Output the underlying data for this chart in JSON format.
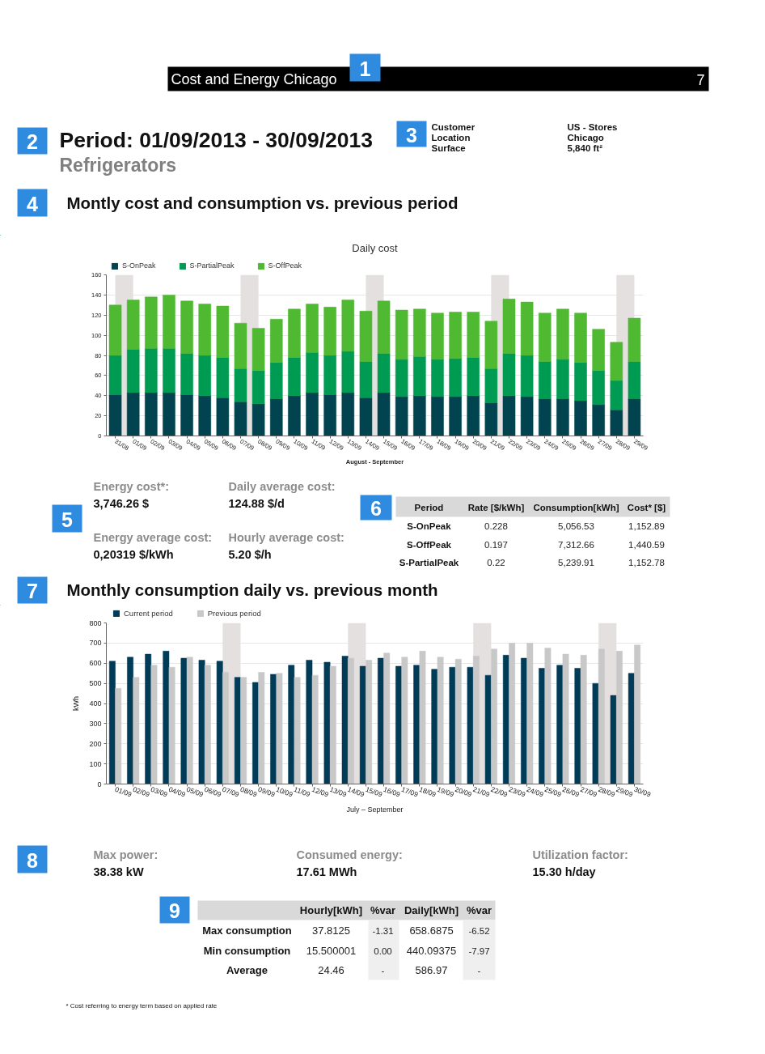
{
  "chart_data": [
    {
      "type": "other",
      "title": "Cost and Energy Chicago",
      "annotations": [
        "7",
        "1",
        "2",
        "Period: 01/09/2013 - 30/09/2013",
        "Refrigerators",
        "3",
        "Customer",
        "Location",
        "Surface",
        "US - Stores",
        "Chicago",
        "5,840 ft²",
        "4",
        "Montly cost and consumption vs. previous period"
      ]
    },
    {
      "type": "bar",
      "title": "Daily cost",
      "xlabel": "August - September",
      "categories": [
        "31/08",
        "01/09",
        "02/09",
        "03/09",
        "04/09",
        "05/09",
        "06/09",
        "07/09",
        "08/09",
        "09/09",
        "10/09",
        "11/09",
        "12/09",
        "13/09",
        "14/09",
        "15/09",
        "16/09",
        "17/09",
        "18/09",
        "19/09",
        "20/09",
        "21/09",
        "22/09",
        "23/09",
        "24/09",
        "25/09",
        "26/09",
        "27/09",
        "28/09",
        "29/09"
      ],
      "stacked": true,
      "series": [
        {
          "name": "S-OnPeak",
          "color": "#01434f",
          "values": [
            41,
            43,
            43,
            43,
            41,
            40,
            38,
            34,
            32,
            37,
            40,
            43,
            41,
            43,
            38,
            43,
            39,
            40,
            39,
            39,
            40,
            33,
            40,
            39,
            37,
            37,
            35,
            31,
            26,
            37
          ]
        },
        {
          "name": "S-PartialPeak",
          "color": "#009b52",
          "values": [
            39,
            43,
            44,
            44,
            41,
            40,
            40,
            33,
            33,
            36,
            38,
            40,
            39,
            41,
            36,
            39,
            37,
            39,
            37,
            38,
            38,
            34,
            42,
            41,
            37,
            39,
            38,
            34,
            29,
            37
          ]
        },
        {
          "name": "S-OffPeak",
          "color": "#50b932",
          "values": [
            50,
            49,
            51,
            53,
            52,
            51,
            51,
            45,
            42,
            43,
            48,
            48,
            48,
            51,
            50,
            52,
            49,
            47,
            46,
            46,
            45,
            47,
            54,
            53,
            48,
            50,
            49,
            41,
            38,
            43
          ]
        }
      ],
      "ylim": [
        0,
        160
      ],
      "yticks": [
        0,
        20,
        40,
        60,
        80,
        100,
        120,
        140,
        160
      ],
      "grid": "y",
      "legend": "top left",
      "bands": [
        {
          "axis": "x",
          "from": "31/08",
          "to": "01/09",
          "color": "#e4e0e0"
        },
        {
          "axis": "x",
          "from": "07/09",
          "to": "08/09",
          "color": "#e4e0e0"
        },
        {
          "axis": "x",
          "from": "14/09",
          "to": "15/09",
          "color": "#e4e0e0"
        },
        {
          "axis": "x",
          "from": "21/09",
          "to": "22/09",
          "color": "#e4e0e0"
        },
        {
          "axis": "x",
          "from": "28/09",
          "to": "29/09",
          "color": "#e4e0e0"
        }
      ]
    },
    {
      "type": "other",
      "annotations": [
        "5",
        "Energy cost*:",
        "3,746.26 $",
        "Daily average cost:",
        "124.88 $/d",
        "Energy average cost:",
        "0,20319 $/kWh",
        "Hourly average cost:",
        "5.20 $/h",
        "6",
        "Period",
        "Rate [$/kWh]",
        "Consumption[kWh]",
        "Cost* [$]",
        "S-OnPeak",
        "0.228",
        "5,056.53",
        "1,152.89",
        "S-OffPeak",
        "0.197",
        "7,312.66",
        "1,440.59",
        "S-PartialPeak",
        "0.22",
        "5,239.91",
        "1,152.78",
        "7",
        "Monthly consumption daily vs. previous month"
      ]
    },
    {
      "type": "bar",
      "xlabel": "July – September",
      "ylabel": "kWh",
      "categories": [
        "01/09",
        "02/09",
        "03/09",
        "04/09",
        "05/09",
        "06/09",
        "07/09",
        "08/09",
        "09/09",
        "10/09",
        "11/09",
        "12/09",
        "13/09",
        "14/09",
        "15/09",
        "16/09",
        "17/09",
        "18/09",
        "19/09",
        "20/09",
        "21/09",
        "22/09",
        "23/09",
        "24/09",
        "25/09",
        "26/09",
        "27/09",
        "28/09",
        "29/09",
        "30/09"
      ],
      "series": [
        {
          "name": "Current period",
          "color": "#003b57",
          "values": [
            610,
            630,
            645,
            660,
            625,
            615,
            610,
            530,
            505,
            545,
            590,
            615,
            605,
            635,
            585,
            625,
            585,
            590,
            570,
            580,
            580,
            540,
            640,
            625,
            575,
            590,
            575,
            500,
            440,
            550
          ]
        },
        {
          "name": "Previous period",
          "color": "#c8c8c8",
          "values": [
            475,
            530,
            590,
            580,
            630,
            590,
            555,
            530,
            555,
            550,
            530,
            540,
            585,
            625,
            615,
            650,
            630,
            660,
            630,
            620,
            635,
            670,
            700,
            700,
            675,
            645,
            640,
            670,
            660,
            690
          ]
        }
      ],
      "ylim": [
        0,
        800
      ],
      "yticks": [
        0,
        100,
        200,
        300,
        400,
        500,
        600,
        700,
        800
      ],
      "grid": "y",
      "legend": "top left",
      "bands": [
        {
          "axis": "x",
          "from": "07/09",
          "to": "08/09",
          "color": "#e4e0e0"
        },
        {
          "axis": "x",
          "from": "14/09",
          "to": "15/09",
          "color": "#e4e0e0"
        },
        {
          "axis": "x",
          "from": "21/09",
          "to": "22/09",
          "color": "#e4e0e0"
        },
        {
          "axis": "x",
          "from": "28/09",
          "to": "29/09",
          "color": "#e4e0e0"
        }
      ]
    },
    {
      "type": "other",
      "annotations": [
        "8",
        "Max power:",
        "38.38 kW",
        "Consumed energy:",
        "17.61 MWh",
        "Utilization factor:",
        "15.30 h/day",
        "9",
        "Hourly[kWh]",
        "%var",
        "Daily[kWh]",
        "%var",
        "Max consumption",
        "37.8125",
        "-1.31",
        "658.6875",
        "-6.52",
        "Min consumption",
        "15.500001",
        "0.00",
        "440.09375",
        "-7.97",
        "Average",
        "24.46",
        "-",
        "586.97",
        "-",
        "* Cost referring to energy term based on applied rate"
      ]
    }
  ]
}
